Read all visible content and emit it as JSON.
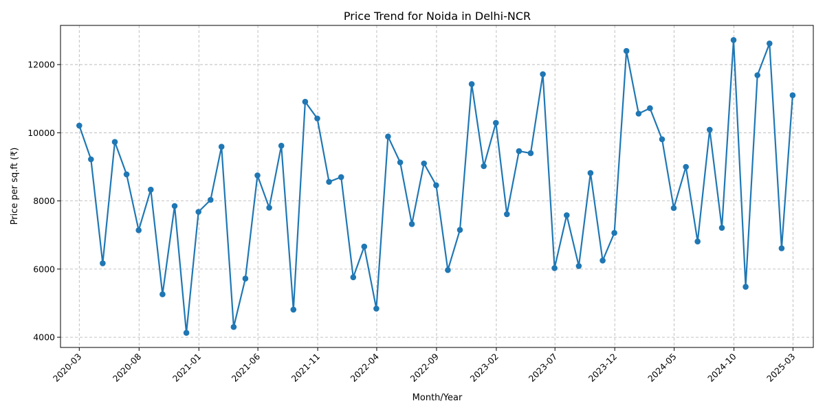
{
  "chart_data": {
    "type": "line",
    "title": "Price Trend for Noida in Delhi-NCR",
    "xlabel": "Month/Year",
    "ylabel": "Price per sq.ft (₹)",
    "xlim": [
      "2020-01-13",
      "2025-04-22"
    ],
    "ylim": [
      3700,
      13150
    ],
    "grid": true,
    "line_color": "#1f77b4",
    "x_ticks": [
      "2020-03",
      "2020-08",
      "2021-01",
      "2021-06",
      "2021-11",
      "2022-04",
      "2022-09",
      "2023-02",
      "2023-07",
      "2023-12",
      "2024-05",
      "2024-10",
      "2025-03"
    ],
    "y_ticks": [
      4000,
      6000,
      8000,
      10000,
      12000
    ],
    "y_tick_labels": [
      "4000",
      "6000",
      "8000",
      "10000",
      "12000"
    ],
    "series": [
      {
        "x": [
          "2020-03-01",
          "2020-03-31",
          "2020-04-30",
          "2020-05-31",
          "2020-06-30",
          "2020-07-31",
          "2020-08-31",
          "2020-09-30",
          "2020-10-31",
          "2020-11-30",
          "2020-12-31",
          "2021-01-31",
          "2021-02-28",
          "2021-03-31",
          "2021-04-30",
          "2021-05-31",
          "2021-06-30",
          "2021-07-31",
          "2021-08-31",
          "2021-09-30",
          "2021-10-31",
          "2021-11-30",
          "2021-12-31",
          "2022-01-31",
          "2022-02-28",
          "2022-03-31",
          "2022-04-30",
          "2022-05-31",
          "2022-06-30",
          "2022-07-31",
          "2022-08-31",
          "2022-09-30",
          "2022-10-31",
          "2022-11-30",
          "2022-12-31",
          "2023-01-31",
          "2023-02-28",
          "2023-03-31",
          "2023-04-30",
          "2023-05-31",
          "2023-06-30",
          "2023-07-31",
          "2023-08-31",
          "2023-09-30",
          "2023-10-31",
          "2023-11-30",
          "2023-12-31",
          "2024-01-31",
          "2024-02-29",
          "2024-03-31",
          "2024-04-30",
          "2024-05-31",
          "2024-06-30",
          "2024-07-31",
          "2024-08-31",
          "2024-09-30",
          "2024-10-31",
          "2024-11-30",
          "2024-12-31",
          "2025-01-31",
          "2025-02-28"
        ],
        "values": [
          10210,
          9220,
          6170,
          9730,
          8780,
          7140,
          8330,
          5260,
          7850,
          4130,
          7680,
          8030,
          9590,
          4300,
          5720,
          8750,
          7800,
          9620,
          4810,
          10910,
          10420,
          8560,
          8700,
          5760,
          6660,
          4840,
          9890,
          9130,
          7320,
          9100,
          8460,
          5970,
          7150,
          11430,
          9020,
          10290,
          7610,
          9460,
          9400,
          11720,
          6030,
          7580,
          6090,
          8820,
          6250,
          7060,
          12400,
          10560,
          10720,
          9810,
          7790,
          9000,
          6810,
          10090,
          7210,
          12720,
          5480,
          11690,
          12620,
          6610,
          11100
        ]
      }
    ]
  }
}
